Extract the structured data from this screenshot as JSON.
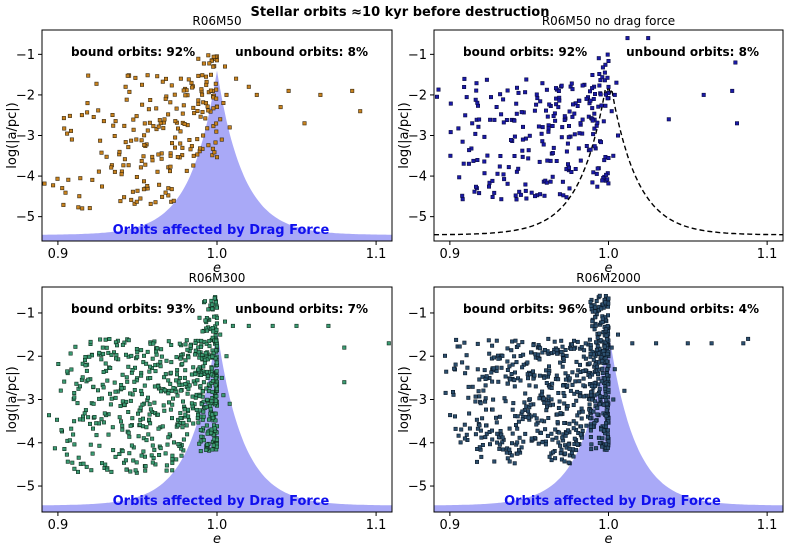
{
  "figure": {
    "suptitle": "Stellar orbits  ≈10  kyr before destruction"
  },
  "chart_data": [
    {
      "type": "scatter",
      "title": "R06M50",
      "xlabel": "e",
      "ylabel": "log(|a/pc|)",
      "xlim": [
        0.89,
        1.11
      ],
      "ylim": [
        -5.6,
        -0.4
      ],
      "xticks": [
        0.9,
        1.0,
        1.1
      ],
      "yticks": [
        -5,
        -4,
        -3,
        -2,
        -1
      ],
      "marker_color": "#c8821e",
      "marker_edge": "#3a2a10",
      "annotations": {
        "bound": "bound orbits: 92%",
        "unbound": "unbound orbits: 8%",
        "region": "Orbits affected by Drag Force"
      },
      "drag_region": "shaded",
      "bound_count": 230,
      "bound_ymin": -4.8,
      "bound_ymax": -1.5,
      "near_count": 50,
      "near_ymin": -3.6,
      "near_ymax": -1.0,
      "unbound_points": [
        [
          1.002,
          -2.6
        ],
        [
          1.004,
          -2.2
        ],
        [
          1.003,
          -3.1
        ],
        [
          1.006,
          -2.0
        ],
        [
          1.008,
          -2.8
        ],
        [
          1.012,
          -1.6
        ],
        [
          1.02,
          -1.8
        ],
        [
          1.025,
          -2.0
        ],
        [
          1.04,
          -2.3
        ],
        [
          1.045,
          -1.9
        ],
        [
          1.055,
          -2.7
        ],
        [
          1.065,
          -2.0
        ],
        [
          1.085,
          -1.9
        ],
        [
          1.09,
          -2.4
        ],
        [
          1.005,
          -1.3
        ]
      ],
      "seed": 11
    },
    {
      "type": "scatter",
      "title": "R06M50 no drag force",
      "xlabel": "e",
      "ylabel": "log(|a/pc|)",
      "xlim": [
        0.89,
        1.11
      ],
      "ylim": [
        -5.6,
        -0.4
      ],
      "xticks": [
        0.9,
        1.0,
        1.1
      ],
      "yticks": [
        -5,
        -4,
        -3,
        -2,
        -1
      ],
      "marker_color": "#1a1aa8",
      "marker_edge": "#0a0a40",
      "annotations": {
        "bound": "bound orbits: 92%",
        "unbound": "unbound orbits: 8%",
        "region": ""
      },
      "drag_region": "dashed",
      "bound_count": 230,
      "bound_ymin": -4.6,
      "bound_ymax": -1.6,
      "near_count": 50,
      "near_ymin": -4.3,
      "near_ymax": -1.0,
      "unbound_points": [
        [
          1.002,
          -2.4
        ],
        [
          1.004,
          -2.0
        ],
        [
          1.006,
          -3.0
        ],
        [
          1.012,
          -0.6
        ],
        [
          1.025,
          -0.6
        ],
        [
          1.038,
          -2.6
        ],
        [
          1.06,
          -2.0
        ],
        [
          1.078,
          -1.9
        ],
        [
          1.08,
          -1.2
        ],
        [
          1.081,
          -2.7
        ],
        [
          1.003,
          -3.5
        ],
        [
          1.005,
          -1.7
        ]
      ],
      "seed": 23
    },
    {
      "type": "scatter",
      "title": "R06M300",
      "xlabel": "e",
      "ylabel": "log(|a/pc|)",
      "xlim": [
        0.89,
        1.11
      ],
      "ylim": [
        -5.6,
        -0.4
      ],
      "xticks": [
        0.9,
        1.0,
        1.1
      ],
      "yticks": [
        -5,
        -4,
        -3,
        -2,
        -1
      ],
      "marker_color": "#3a9a72",
      "marker_edge": "#10301f",
      "annotations": {
        "bound": "bound orbits: 93%",
        "unbound": "unbound orbits: 7%",
        "region": "Orbits affected by Drag Force"
      },
      "drag_region": "shaded",
      "bound_count": 520,
      "bound_ymin": -4.7,
      "bound_ymax": -1.6,
      "near_count": 220,
      "near_ymin": -4.2,
      "near_ymax": -0.6,
      "unbound_points": [
        [
          1.002,
          -1.5
        ],
        [
          1.003,
          -2.5
        ],
        [
          1.005,
          -1.2
        ],
        [
          1.008,
          -3.1
        ],
        [
          1.01,
          -1.3
        ],
        [
          1.02,
          -1.3
        ],
        [
          1.035,
          -1.3
        ],
        [
          1.05,
          -1.3
        ],
        [
          1.07,
          -1.3
        ],
        [
          1.08,
          -1.8
        ],
        [
          1.08,
          -2.6
        ],
        [
          1.108,
          -1.7
        ],
        [
          1.004,
          -2.9
        ],
        [
          1.006,
          -2.0
        ]
      ],
      "seed": 37
    },
    {
      "type": "scatter",
      "title": "R06M2000",
      "xlabel": "e",
      "ylabel": "log(|a/pc|)",
      "xlim": [
        0.89,
        1.11
      ],
      "ylim": [
        -5.6,
        -0.4
      ],
      "xticks": [
        0.9,
        1.0,
        1.1
      ],
      "yticks": [
        -5,
        -4,
        -3,
        -2,
        -1
      ],
      "marker_color": "#2c4f6e",
      "marker_edge": "#0c1a28",
      "annotations": {
        "bound": "bound orbits: 96%",
        "unbound": "unbound orbits: 4%",
        "region": "Orbits affected by Drag Force"
      },
      "drag_region": "shaded",
      "bound_count": 560,
      "bound_ymin": -4.5,
      "bound_ymax": -1.6,
      "near_count": 260,
      "near_ymin": -4.2,
      "near_ymax": -0.6,
      "unbound_points": [
        [
          1.002,
          -1.8
        ],
        [
          1.004,
          -2.3
        ],
        [
          1.006,
          -1.5
        ],
        [
          1.01,
          -2.8
        ],
        [
          1.015,
          -1.7
        ],
        [
          1.03,
          -1.7
        ],
        [
          1.05,
          -1.7
        ],
        [
          1.065,
          -1.7
        ],
        [
          1.085,
          -1.7
        ],
        [
          1.088,
          -1.6
        ],
        [
          1.003,
          -3.0
        ]
      ],
      "seed": 53
    }
  ]
}
